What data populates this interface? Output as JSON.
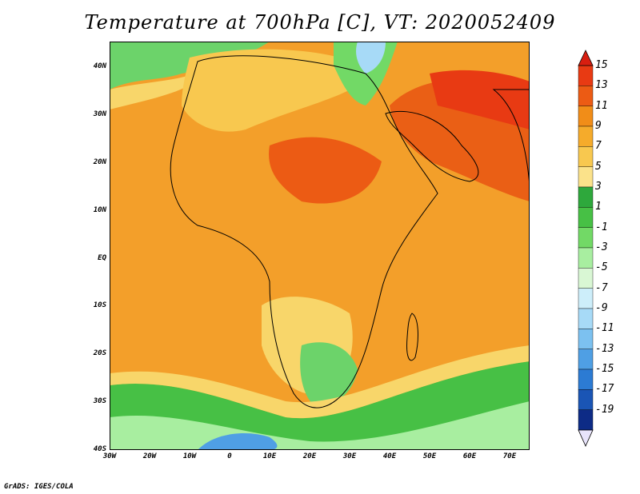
{
  "title": "Temperature at 700hPa [C], VT: 2020052409",
  "footer": "GrADS: IGES/COLA",
  "map": {
    "lon_range": [
      -30,
      75
    ],
    "lat_range": [
      -40,
      45
    ],
    "lat_labels": [
      "40N",
      "30N",
      "20N",
      "10N",
      "EQ",
      "10S",
      "20S",
      "30S",
      "40S"
    ],
    "lon_labels": [
      "30W",
      "20W",
      "10W",
      "0",
      "10E",
      "20E",
      "30E",
      "40E",
      "50E",
      "60E",
      "70E"
    ]
  },
  "colorbar": {
    "labels": [
      "15",
      "13",
      "11",
      "9",
      "7",
      "5",
      "3",
      "1",
      "-1",
      "-3",
      "-5",
      "-7",
      "-9",
      "-11",
      "-13",
      "-15",
      "-17",
      "-19"
    ],
    "colors": [
      "#e83a13",
      "#ec5b14",
      "#f18d18",
      "#f5ab2b",
      "#f8c84f",
      "#fbe28a",
      "#2ea83c",
      "#47c045",
      "#72d966",
      "#a8eea0",
      "#d9f7d4",
      "#cdeefa",
      "#a7daf7",
      "#7cc1f0",
      "#4f9fe4",
      "#2c7bd3",
      "#1a55b5",
      "#0d2b86"
    ],
    "top_arrow_color": "#d81e10",
    "bottom_arrow_color": "#e8e4fb"
  },
  "legend_colors": {
    "ocean_warm": "#f39f2a",
    "land_hot": "#ea5f15",
    "cool_green": "#6cd36a",
    "cold_blue": "#4f9fe4",
    "mild_yellow": "#f8d66a"
  }
}
